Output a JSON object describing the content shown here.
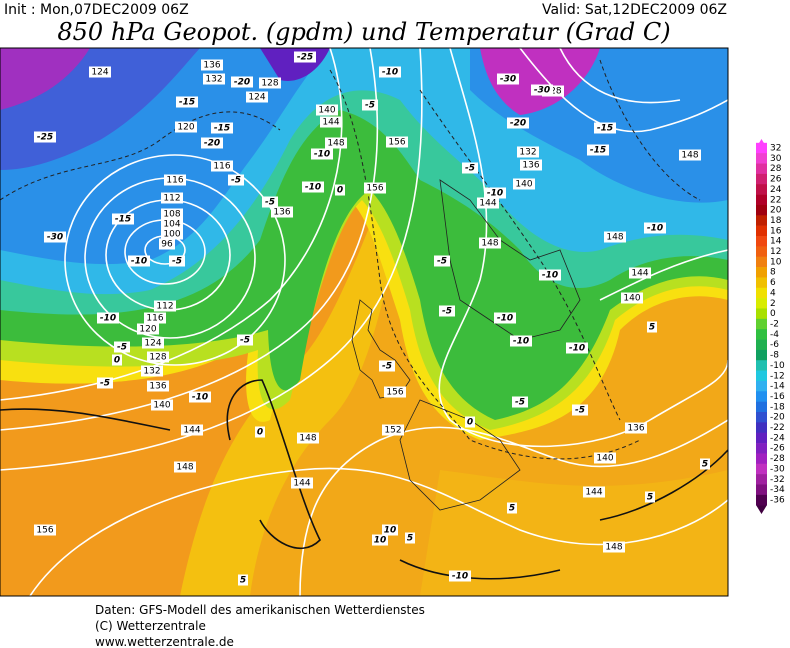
{
  "header": {
    "init": "Init : Mon,07DEC2009 06Z",
    "valid": "Valid: Sat,12DEC2009 06Z",
    "title": "850 hPa Geopot. (gpdm) und Temperatur (Grad C)"
  },
  "colorbar": {
    "ticks": [
      32,
      30,
      28,
      26,
      24,
      22,
      20,
      18,
      16,
      14,
      12,
      10,
      8,
      6,
      4,
      2,
      0,
      -2,
      -4,
      -6,
      -8,
      -10,
      -12,
      -14,
      -16,
      -18,
      -20,
      -22,
      -24,
      -26,
      -28,
      -30,
      -32,
      -34,
      -36
    ],
    "colors": [
      "#ff40ff",
      "#f040d0",
      "#e030a0",
      "#d02070",
      "#c01048",
      "#b00028",
      "#a00010",
      "#c02000",
      "#e03000",
      "#f04810",
      "#f06010",
      "#f08010",
      "#f0a000",
      "#f0c000",
      "#f0e000",
      "#d8ec00",
      "#a8e000",
      "#60d030",
      "#30c040",
      "#20b050",
      "#10a060",
      "#20c0b0",
      "#20c8e0",
      "#30b0f0",
      "#2090f0",
      "#2070e0",
      "#3050d0",
      "#4030c0",
      "#6020c0",
      "#8020c0",
      "#a020c0",
      "#c030c0",
      "#a020a0",
      "#801080",
      "#500050"
    ]
  },
  "map": {
    "geopotential_labels": [
      "124",
      "136",
      "132",
      "128",
      "124",
      "120",
      "116",
      "116",
      "112",
      "108",
      "104",
      "100",
      "96",
      "112",
      "116",
      "120",
      "124",
      "128",
      "132",
      "136",
      "140",
      "144",
      "148",
      "156",
      "144",
      "148",
      "152",
      "156",
      "156",
      "156",
      "144",
      "140",
      "148",
      "136",
      "148",
      "144",
      "140",
      "136",
      "132",
      "128",
      "148",
      "148",
      "144",
      "140",
      "136",
      "140",
      "144",
      "148"
    ],
    "temperature_labels": [
      "-25",
      "-30",
      "-10",
      "-5",
      "-15",
      "-10",
      "-5",
      "-5",
      "0",
      "-10",
      "-5",
      "0",
      "-5",
      "-5",
      "-5",
      "-10",
      "-10",
      "-10",
      "-10",
      "-10",
      "-15",
      "-15",
      "-20",
      "-30",
      "-30",
      "-10",
      "-5",
      "-10",
      "-10",
      "0",
      "-20",
      "-25",
      "-15",
      "-15",
      "-20",
      "-5",
      "-5",
      "-10",
      "10",
      "10",
      "5",
      "5",
      "5",
      "5",
      "5",
      "5",
      "0",
      "-5",
      "-5",
      "-10",
      "-5"
    ]
  },
  "footer": [
    "Daten: GFS-Modell des amerikanischen Wetterdienstes",
    "(C) Wetterzentrale",
    "www.wetterzentrale.de"
  ]
}
